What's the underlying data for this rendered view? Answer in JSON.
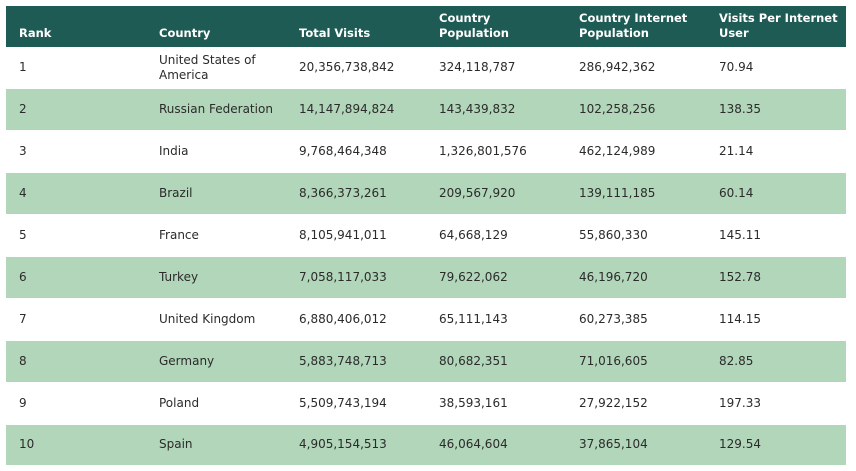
{
  "table": {
    "headers": [
      "Rank",
      "Country",
      "Total Visits",
      "Country Population",
      "Country Internet Population",
      "Visits Per Internet User"
    ],
    "rows": [
      [
        "1",
        "United States of America",
        "20,356,738,842",
        "324,118,787",
        "286,942,362",
        "70.94"
      ],
      [
        "2",
        "Russian Federation",
        "14,147,894,824",
        "143,439,832",
        "102,258,256",
        "138.35"
      ],
      [
        "3",
        "India",
        "9,768,464,348",
        "1,326,801,576",
        "462,124,989",
        "21.14"
      ],
      [
        "4",
        "Brazil",
        "8,366,373,261",
        "209,567,920",
        "139,111,185",
        "60.14"
      ],
      [
        "5",
        "France",
        "8,105,941,011",
        "64,668,129",
        "55,860,330",
        "145.11"
      ],
      [
        "6",
        "Turkey",
        "7,058,117,033",
        "79,622,062",
        "46,196,720",
        "152.78"
      ],
      [
        "7",
        "United Kingdom",
        "6,880,406,012",
        "65,111,143",
        "60,273,385",
        "114.15"
      ],
      [
        "8",
        "Germany",
        "5,883,748,713",
        "80,682,351",
        "71,016,605",
        "82.85"
      ],
      [
        "9",
        "Poland",
        "5,509,743,194",
        "38,593,161",
        "27,922,152",
        "197.33"
      ],
      [
        "10",
        "Spain",
        "4,905,154,513",
        "46,064,604",
        "37,865,104",
        "129.54"
      ]
    ]
  }
}
